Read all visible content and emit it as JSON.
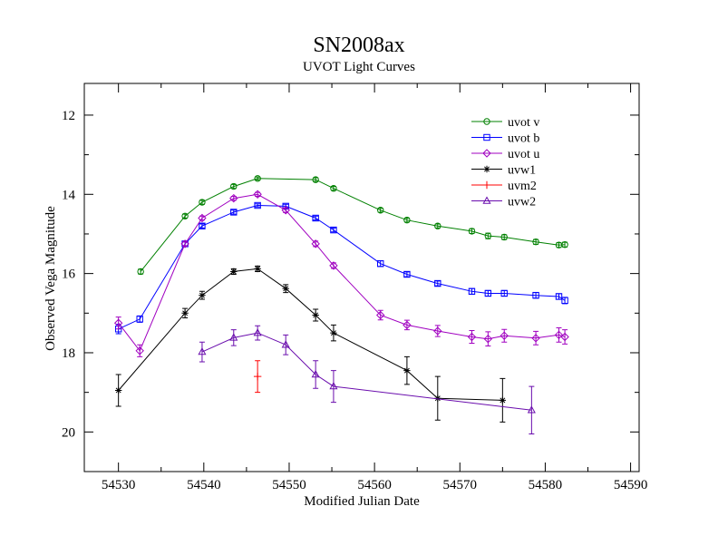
{
  "chart_data": {
    "type": "scatter",
    "title": "SN2008ax",
    "subtitle": "UVOT Light Curves",
    "xlabel": "Modified Julian Date",
    "ylabel": "Observed Vega Magnitude",
    "xlim": [
      54526,
      54591
    ],
    "ylim": [
      21.0,
      11.2
    ],
    "y_inverted": true,
    "xticks": [
      54530,
      54540,
      54550,
      54560,
      54570,
      54580,
      54590
    ],
    "yticks": [
      12,
      14,
      16,
      18,
      20
    ],
    "grid": false,
    "legend_position": "top-right",
    "series": [
      {
        "name": "uvot v",
        "color": "#008000",
        "marker": "circle",
        "x": [
          54532.6,
          54537.8,
          54539.8,
          54543.5,
          54546.3,
          54553.1,
          54555.2,
          54560.7,
          54563.8,
          54567.4,
          54571.4,
          54573.3,
          54575.2,
          54578.9,
          54581.6,
          54582.3
        ],
        "y": [
          15.95,
          14.55,
          14.2,
          13.8,
          13.6,
          13.63,
          13.85,
          14.4,
          14.65,
          14.8,
          14.93,
          15.05,
          15.08,
          15.2,
          15.28,
          15.27
        ],
        "err": [
          0.06,
          0.05,
          0.05,
          0.05,
          0.04,
          0.05,
          0.05,
          0.05,
          0.05,
          0.05,
          0.06,
          0.07,
          0.06,
          0.06,
          0.06,
          0.06
        ]
      },
      {
        "name": "uvot b",
        "color": "#0000ff",
        "marker": "square",
        "x": [
          54530.0,
          54532.5,
          54537.8,
          54539.8,
          54543.5,
          54546.3,
          54549.6,
          54553.1,
          54555.2,
          54560.7,
          54563.8,
          54567.4,
          54571.4,
          54573.3,
          54575.2,
          54578.9,
          54581.6,
          54582.3
        ],
        "y": [
          17.4,
          17.15,
          15.25,
          14.8,
          14.45,
          14.28,
          14.3,
          14.6,
          14.9,
          15.75,
          16.02,
          16.25,
          16.45,
          16.5,
          16.5,
          16.55,
          16.58,
          16.68
        ],
        "err": [
          0.12,
          0.08,
          0.05,
          0.05,
          0.05,
          0.04,
          0.05,
          0.05,
          0.05,
          0.07,
          0.06,
          0.06,
          0.07,
          0.07,
          0.07,
          0.07,
          0.07,
          0.08
        ]
      },
      {
        "name": "uvot u",
        "color": "#a000c0",
        "marker": "diamond",
        "x": [
          54530.0,
          54532.5,
          54537.8,
          54539.8,
          54543.5,
          54546.3,
          54549.6,
          54553.1,
          54555.2,
          54560.7,
          54563.8,
          54567.4,
          54571.4,
          54573.3,
          54575.2,
          54578.9,
          54581.6,
          54582.3
        ],
        "y": [
          17.25,
          17.95,
          15.25,
          14.6,
          14.1,
          14.0,
          14.4,
          15.25,
          15.8,
          17.05,
          17.3,
          17.45,
          17.6,
          17.65,
          17.57,
          17.63,
          17.55,
          17.6
        ],
        "err": [
          0.15,
          0.15,
          0.06,
          0.05,
          0.05,
          0.05,
          0.06,
          0.07,
          0.07,
          0.12,
          0.12,
          0.14,
          0.16,
          0.18,
          0.16,
          0.17,
          0.18,
          0.18
        ]
      },
      {
        "name": "uvw1",
        "color": "#000000",
        "marker": "star",
        "x": [
          54530.0,
          54537.8,
          54539.8,
          54543.5,
          54546.3,
          54549.6,
          54553.1,
          54555.2,
          54563.8,
          54567.4,
          54575.0
        ],
        "y": [
          18.95,
          17.0,
          16.55,
          15.95,
          15.88,
          16.38,
          17.05,
          17.5,
          18.45,
          19.15,
          19.2
        ],
        "err": [
          0.4,
          0.12,
          0.1,
          0.07,
          0.07,
          0.1,
          0.15,
          0.2,
          0.35,
          0.55,
          0.55
        ]
      },
      {
        "name": "uvm2",
        "color": "#ff0000",
        "marker": "plus",
        "x": [
          54546.3
        ],
        "y": [
          18.6
        ],
        "err": [
          0.4
        ]
      },
      {
        "name": "uvw2",
        "color": "#6a0dad",
        "marker": "triangle",
        "x": [
          54539.8,
          54543.5,
          54546.3,
          54549.6,
          54553.1,
          54555.2,
          54578.4
        ],
        "y": [
          17.98,
          17.62,
          17.5,
          17.8,
          18.55,
          18.85,
          19.45
        ],
        "err": [
          0.25,
          0.2,
          0.18,
          0.25,
          0.35,
          0.4,
          0.6
        ]
      }
    ]
  }
}
